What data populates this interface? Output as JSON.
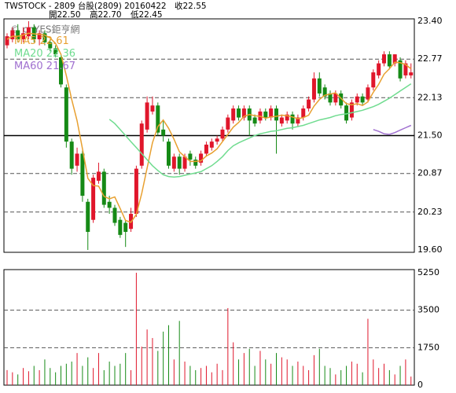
{
  "header": {
    "title": "TWSTOCK - 2809 台股(2809) 20160422",
    "close": "收22.55",
    "open": "開22.50",
    "high": "高22.70",
    "low": "低22.45"
  },
  "chart_data": [
    {
      "type": "candlestick",
      "watermark": "© cnYES鉅亨網",
      "up_color": "#e0162b",
      "down_color": "#168a16",
      "open": [
        23.0,
        23.1,
        23.25,
        23.1,
        23.15,
        23.3,
        23.1,
        23.2,
        23.05,
        22.95,
        22.8,
        22.3,
        21.4,
        21.0,
        21.2,
        20.4,
        20.1,
        20.75,
        20.9,
        20.4,
        20.3,
        20.1,
        20.05,
        19.95,
        20.2,
        21.0,
        21.6,
        21.9,
        22.0,
        21.6,
        21.4,
        20.95,
        21.15,
        20.95,
        21.2,
        21.1,
        21.05,
        21.2,
        21.3,
        21.4,
        21.45,
        21.6,
        21.75,
        21.95,
        21.8,
        21.95,
        21.8,
        21.75,
        21.9,
        21.8,
        21.95,
        21.7,
        21.75,
        21.85,
        21.7,
        21.8,
        21.95,
        22.1,
        22.45,
        22.3,
        22.2,
        22.05,
        22.2,
        22.0,
        21.8,
        22.05,
        22.15,
        22.1,
        22.3,
        22.5,
        22.7,
        22.85,
        22.7,
        22.75,
        22.5,
        22.5
      ],
      "high": [
        23.2,
        23.3,
        23.35,
        23.3,
        23.4,
        23.35,
        23.25,
        23.25,
        23.1,
        23.0,
        22.85,
        22.35,
        21.45,
        21.3,
        21.25,
        20.45,
        20.85,
        21.05,
        20.95,
        20.5,
        20.35,
        20.15,
        20.1,
        20.3,
        21.0,
        21.75,
        22.15,
        22.15,
        22.05,
        21.75,
        21.45,
        21.2,
        21.2,
        21.2,
        21.25,
        21.15,
        21.25,
        21.4,
        21.45,
        21.5,
        21.65,
        21.85,
        22.0,
        22.0,
        22.0,
        22.0,
        21.85,
        21.95,
        21.95,
        22.0,
        22.0,
        21.85,
        21.9,
        21.9,
        21.85,
        22.0,
        22.15,
        22.55,
        22.55,
        22.35,
        22.25,
        22.25,
        22.25,
        22.05,
        22.1,
        22.2,
        22.2,
        22.35,
        22.6,
        22.75,
        22.9,
        22.9,
        22.85,
        22.8,
        22.75,
        22.7
      ],
      "low": [
        22.95,
        23.05,
        23.05,
        23.05,
        23.1,
        23.05,
        23.0,
        23.0,
        22.9,
        22.8,
        22.3,
        21.3,
        20.85,
        20.9,
        20.4,
        19.6,
        20.05,
        20.7,
        20.3,
        20.2,
        20.0,
        19.8,
        19.65,
        19.9,
        20.15,
        20.95,
        21.55,
        21.85,
        21.5,
        21.4,
        20.95,
        20.9,
        20.85,
        20.9,
        21.0,
        20.95,
        21.0,
        21.15,
        21.25,
        21.35,
        21.4,
        21.55,
        21.7,
        21.75,
        21.75,
        21.5,
        21.65,
        21.7,
        21.75,
        21.75,
        21.2,
        21.65,
        21.7,
        21.6,
        21.65,
        21.75,
        21.9,
        22.05,
        22.15,
        22.1,
        22.0,
        22.0,
        21.95,
        21.7,
        21.75,
        22.0,
        22.0,
        22.05,
        22.25,
        22.45,
        22.65,
        22.6,
        22.65,
        22.4,
        22.45,
        22.45
      ],
      "close": [
        23.15,
        23.25,
        23.1,
        23.2,
        23.3,
        23.1,
        23.2,
        23.05,
        22.95,
        22.85,
        22.35,
        21.4,
        20.95,
        21.2,
        20.5,
        19.9,
        20.8,
        20.9,
        20.35,
        20.3,
        20.05,
        19.85,
        19.9,
        20.2,
        20.95,
        21.7,
        22.05,
        22.0,
        21.55,
        21.5,
        21.0,
        21.15,
        20.95,
        21.15,
        21.1,
        21.0,
        21.2,
        21.35,
        21.4,
        21.45,
        21.6,
        21.8,
        21.95,
        21.8,
        21.95,
        21.75,
        21.7,
        21.9,
        21.8,
        21.95,
        21.75,
        21.8,
        21.85,
        21.7,
        21.8,
        21.95,
        22.1,
        22.45,
        22.2,
        22.15,
        22.05,
        22.2,
        22.0,
        21.75,
        22.05,
        22.15,
        22.05,
        22.3,
        22.55,
        22.7,
        22.85,
        22.65,
        22.85,
        22.45,
        22.7,
        22.55
      ],
      "lines": [
        {
          "name": "MA5",
          "color": "#e8a030",
          "values": [
            23.1,
            23.15,
            23.15,
            23.17,
            23.2,
            23.19,
            23.18,
            23.17,
            23.12,
            23.03,
            22.85,
            22.5,
            22.1,
            21.75,
            21.28,
            20.79,
            20.67,
            20.66,
            20.49,
            20.45,
            20.48,
            20.29,
            20.09,
            20.06,
            20.19,
            20.54,
            20.96,
            21.38,
            21.65,
            21.76,
            21.62,
            21.44,
            21.23,
            21.15,
            21.07,
            21.07,
            21.08,
            21.16,
            21.21,
            21.28,
            21.4,
            21.52,
            21.64,
            21.72,
            21.82,
            21.85,
            21.83,
            21.82,
            21.79,
            21.81,
            21.82,
            21.84,
            21.83,
            21.81,
            21.78,
            21.8,
            21.84,
            21.99,
            22.1,
            22.17,
            22.19,
            22.21,
            22.12,
            22.03,
            22.01,
            22.03,
            22.0,
            22.06,
            22.22,
            22.35,
            22.52,
            22.61,
            22.72,
            22.71,
            22.68,
            22.61
          ]
        },
        {
          "name": "MA20",
          "color": "#70dc90",
          "values": [
            null,
            null,
            null,
            null,
            null,
            null,
            null,
            null,
            null,
            null,
            null,
            null,
            null,
            null,
            null,
            null,
            null,
            null,
            null,
            21.77,
            21.7,
            21.6,
            21.5,
            21.4,
            21.3,
            21.2,
            21.1,
            21.0,
            20.92,
            20.85,
            20.82,
            20.81,
            20.82,
            20.84,
            20.86,
            20.88,
            20.9,
            20.95,
            21.0,
            21.07,
            21.15,
            21.25,
            21.33,
            21.38,
            21.42,
            21.46,
            21.5,
            21.53,
            21.55,
            21.57,
            21.58,
            21.6,
            21.62,
            21.63,
            21.65,
            21.67,
            21.7,
            21.73,
            21.76,
            21.78,
            21.8,
            21.83,
            21.85,
            21.86,
            21.88,
            21.9,
            21.92,
            21.95,
            21.98,
            22.02,
            22.07,
            22.12,
            22.18,
            22.24,
            22.3,
            22.36
          ]
        },
        {
          "name": "MA60",
          "color": "#a070d0",
          "values": [
            null,
            null,
            null,
            null,
            null,
            null,
            null,
            null,
            null,
            null,
            null,
            null,
            null,
            null,
            null,
            null,
            null,
            null,
            null,
            null,
            null,
            null,
            null,
            null,
            null,
            null,
            null,
            null,
            null,
            null,
            null,
            null,
            null,
            null,
            null,
            null,
            null,
            null,
            null,
            null,
            null,
            null,
            null,
            null,
            null,
            null,
            null,
            null,
            null,
            null,
            null,
            null,
            null,
            null,
            null,
            null,
            null,
            null,
            null,
            null,
            null,
            null,
            null,
            null,
            null,
            null,
            null,
            null,
            21.6,
            21.57,
            21.53,
            21.52,
            21.55,
            21.59,
            21.63,
            21.67
          ]
        }
      ],
      "ylim": [
        19.6,
        23.4
      ],
      "yticks": [
        {
          "value": 19.6,
          "label": "19.60"
        },
        20.23,
        20.87,
        {
          "value": 21.5,
          "label": "21.50"
        },
        22.13,
        22.77,
        {
          "value": 23.4,
          "label": "23.40"
        }
      ],
      "grid": true,
      "reference": 21.5
    },
    {
      "type": "bar",
      "values": [
        700,
        600,
        500,
        800,
        650,
        900,
        700,
        1200,
        800,
        600,
        900,
        1000,
        1100,
        1500,
        900,
        1300,
        800,
        1500,
        700,
        1100,
        900,
        1000,
        1500,
        700,
        5250,
        1800,
        2600,
        2200,
        1600,
        2500,
        2800,
        1200,
        3000,
        1100,
        900,
        700,
        800,
        900,
        600,
        1000,
        700,
        3600,
        2000,
        1200,
        1500,
        1700,
        900,
        1600,
        1200,
        1000,
        1500,
        1300,
        1200,
        900,
        1100,
        900,
        700,
        1400,
        1700,
        900,
        800,
        500,
        700,
        900,
        1100,
        1000,
        600,
        3100,
        1200,
        800,
        1000,
        700,
        500,
        900,
        1200,
        400
      ],
      "ylim": [
        0,
        5250
      ],
      "yticks": [
        0,
        1750,
        3500,
        5250
      ],
      "grid": true
    }
  ]
}
